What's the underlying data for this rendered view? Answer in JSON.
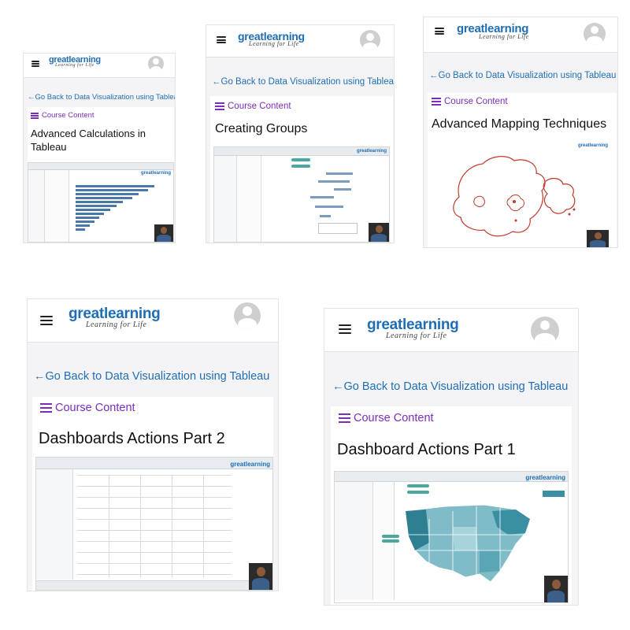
{
  "brand": {
    "name": "greatlearning",
    "tagline": "Learning for Life",
    "blue": "#1f6eb5",
    "purple": "#7b2dbb"
  },
  "common": {
    "back_link": "Go Back to Data Visualization using Tableau",
    "back_arrow": "←",
    "course_content": "Course Content",
    "menu_icon": "hamburger-menu-icon",
    "avatar_icon": "user-avatar-icon"
  },
  "cards": [
    {
      "title": "Advanced Calculations in Tableau",
      "thumbnail": "bar-chart-screenshot"
    },
    {
      "title": "Creating Groups",
      "thumbnail": "gantt-chart-screenshot"
    },
    {
      "title": "Advanced Mapping Techniques",
      "thumbnail": "map-outline-screenshot"
    },
    {
      "title": "Dashboards Actions Part 2",
      "thumbnail": "crosstab-table-screenshot"
    },
    {
      "title": "Dashboard Actions Part 1",
      "thumbnail": "us-filled-map-screenshot"
    }
  ]
}
